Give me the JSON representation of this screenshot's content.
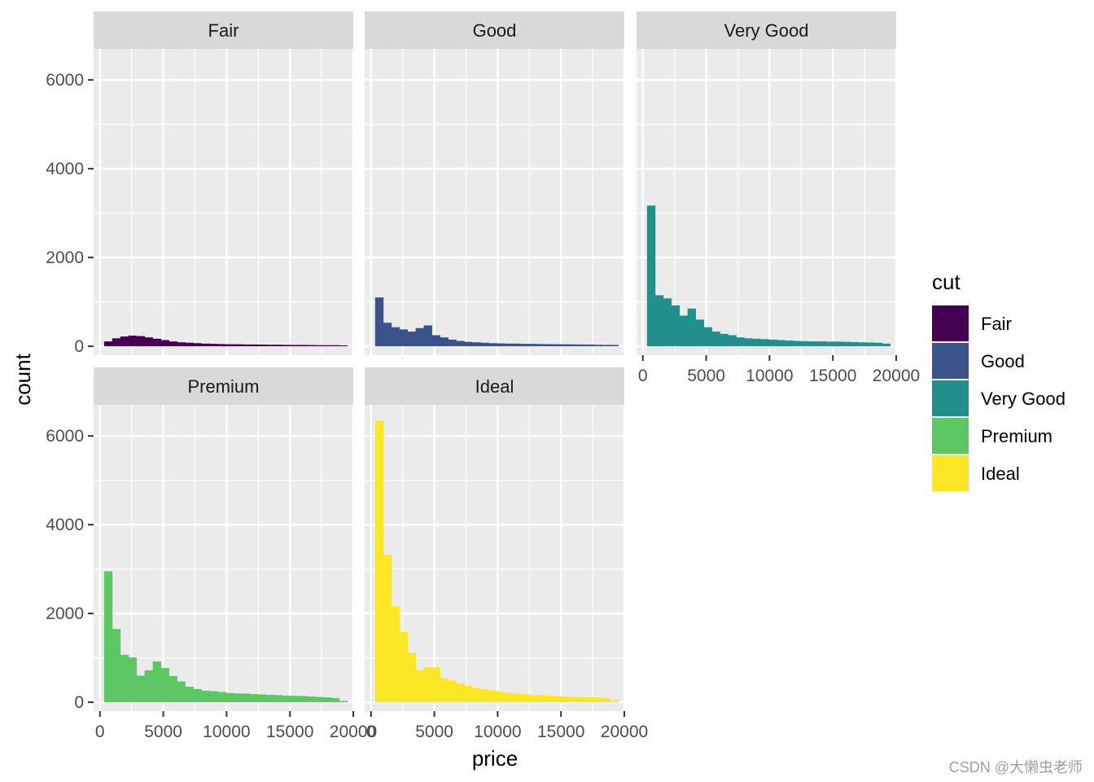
{
  "chart_data": {
    "type": "bar",
    "xlabel": "price",
    "ylabel": "count",
    "xlim": [
      -500,
      20000
    ],
    "ylim": [
      -200,
      6700
    ],
    "x_ticks": [
      0,
      5000,
      10000,
      15000,
      20000
    ],
    "y_ticks": [
      0,
      2000,
      4000,
      6000
    ],
    "x_tick_labels": [
      "0",
      "5000",
      "10000",
      "15000",
      "20000"
    ],
    "y_tick_labels": [
      "0",
      "2000",
      "4000",
      "6000"
    ],
    "grid": true,
    "bin_width": 640,
    "bin_starts": [
      326,
      966,
      1606,
      2246,
      2886,
      3526,
      4166,
      4806,
      5446,
      6086,
      6726,
      7366,
      8006,
      8646,
      9286,
      9926,
      10566,
      11206,
      11846,
      12486,
      13126,
      13766,
      14406,
      15046,
      15686,
      16326,
      16966,
      17606,
      18246,
      18886
    ],
    "legend": {
      "title": "cut",
      "position": "right",
      "entries": [
        "Fair",
        "Good",
        "Very Good",
        "Premium",
        "Ideal"
      ]
    },
    "series": [
      {
        "name": "Fair",
        "color": "#440154",
        "values": [
          110,
          180,
          220,
          240,
          230,
          200,
          170,
          140,
          110,
          90,
          80,
          70,
          60,
          55,
          50,
          45,
          45,
          40,
          40,
          38,
          35,
          35,
          32,
          30,
          30,
          28,
          26,
          25,
          25,
          20
        ]
      },
      {
        "name": "Good",
        "color": "#3B528B",
        "values": [
          1100,
          530,
          430,
          380,
          330,
          410,
          470,
          250,
          200,
          150,
          120,
          100,
          90,
          80,
          70,
          65,
          60,
          60,
          55,
          55,
          50,
          48,
          45,
          45,
          42,
          40,
          38,
          35,
          32,
          30
        ]
      },
      {
        "name": "Very Good",
        "color": "#21908C",
        "values": [
          3170,
          1150,
          1080,
          920,
          690,
          850,
          600,
          430,
          330,
          280,
          250,
          200,
          180,
          170,
          160,
          150,
          140,
          130,
          120,
          115,
          110,
          110,
          105,
          105,
          100,
          95,
          90,
          85,
          80,
          60
        ]
      },
      {
        "name": "Premium",
        "color": "#5DC863",
        "values": [
          2950,
          1650,
          1070,
          1010,
          600,
          720,
          920,
          770,
          590,
          470,
          350,
          300,
          260,
          250,
          230,
          210,
          200,
          195,
          185,
          175,
          165,
          160,
          150,
          145,
          140,
          130,
          120,
          110,
          95,
          30
        ]
      },
      {
        "name": "Ideal",
        "color": "#FDE725",
        "values": [
          6340,
          3320,
          2160,
          1580,
          1120,
          720,
          790,
          790,
          540,
          490,
          420,
          370,
          320,
          290,
          260,
          240,
          210,
          195,
          180,
          165,
          160,
          150,
          140,
          130,
          120,
          115,
          110,
          105,
          90,
          40
        ]
      }
    ]
  },
  "watermark": "CSDN @大懒虫老师"
}
